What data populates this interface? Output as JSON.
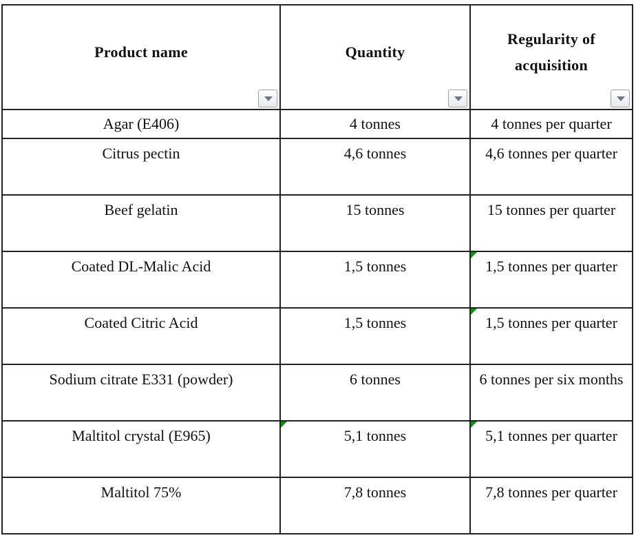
{
  "table": {
    "headers": [
      {
        "label": "Product name"
      },
      {
        "label": "Quantity"
      },
      {
        "label": "Regularity of acquisition"
      }
    ],
    "rows": [
      {
        "product": "Agar (E406)",
        "quantity": "4 tonnes",
        "regularity": "4 tonnes per quarter"
      },
      {
        "product": "Citrus pectin",
        "quantity": "4,6 tonnes",
        "regularity": "4,6 tonnes per quarter"
      },
      {
        "product": "Beef gelatin",
        "quantity": "15 tonnes",
        "regularity": "15 tonnes per quarter"
      },
      {
        "product": "Coated DL-Malic Acid",
        "quantity": "1,5 tonnes",
        "regularity": "1,5 tonnes per quarter"
      },
      {
        "product": "Coated Citric Acid",
        "quantity": "1,5 tonnes",
        "regularity": "1,5 tonnes per quarter"
      },
      {
        "product": "Sodium citrate E331 (powder)",
        "quantity": "6 tonnes",
        "regularity": "6 tonnes per six months"
      },
      {
        "product": "Maltitol crystal (E965)",
        "quantity": "5,1 tonnes",
        "regularity": "5,1 tonnes per quarter"
      },
      {
        "product": "Maltitol 75%",
        "quantity": "7,8 tonnes",
        "regularity": "7,8 tonnes per quarter"
      }
    ]
  },
  "icons": {
    "filter": "filter-dropdown-icon",
    "comment": "comment-indicator-icon"
  },
  "colors": {
    "comment_marker": "#1a8a1a",
    "grid_line": "#222222"
  }
}
